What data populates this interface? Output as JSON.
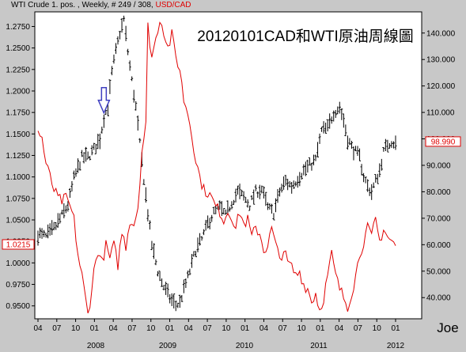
{
  "header": {
    "primary_text": "WTI Crude 1. pos. , Weekly, # 249 / 308,",
    "secondary_text": "USD/CAD"
  },
  "title": "20120101CAD和WTI原油周線圖",
  "signature": "Joe",
  "colors": {
    "background": "#ffffff",
    "frame": "#c8c8c8",
    "wti": "#000000",
    "usdcad": "#e00000",
    "arrow": "#4040c0"
  },
  "chart_data": {
    "type": "line",
    "x_tick_labels": [
      "04",
      "07",
      "10",
      "01",
      "04",
      "07",
      "10",
      "01",
      "04",
      "07",
      "10",
      "01",
      "04",
      "07",
      "10",
      "01",
      "04",
      "07",
      "10",
      "01"
    ],
    "year_labels": [
      "2008",
      "2009",
      "2010",
      "2011",
      "2012"
    ],
    "left_axis": {
      "series": "USD/CAD",
      "ticks": [
        "1.2750",
        "1.2500",
        "1.2250",
        "1.2000",
        "1.1750",
        "1.1500",
        "1.1250",
        "1.1000",
        "1.0750",
        "1.0500",
        "1.0250",
        "1.0000",
        "0.9750",
        "0.9500"
      ],
      "range": [
        0.935,
        1.292
      ],
      "current_value": "1.0215"
    },
    "right_axis": {
      "series": "WTI Crude 1. pos.",
      "ticks": [
        "140.000",
        "130.000",
        "120.000",
        "110.000",
        "100.000",
        "90.000",
        "80.000",
        "70.000",
        "60.000",
        "50.000",
        "40.000"
      ],
      "range": [
        32,
        148
      ],
      "current_value": "98.990"
    },
    "series": [
      {
        "name": "WTI Crude 1. pos.",
        "axis": "right",
        "style": "weekly-bars",
        "key_points": [
          [
            0,
            64
          ],
          [
            4,
            63
          ],
          [
            8,
            66
          ],
          [
            12,
            71
          ],
          [
            15,
            75
          ],
          [
            18,
            85
          ],
          [
            22,
            93
          ],
          [
            25,
            93
          ],
          [
            28,
            96
          ],
          [
            31,
            100
          ],
          [
            33,
            108
          ],
          [
            35,
            112
          ],
          [
            37,
            125
          ],
          [
            39,
            133
          ],
          [
            41,
            140
          ],
          [
            43,
            145
          ],
          [
            45,
            133
          ],
          [
            47,
            122
          ],
          [
            49,
            112
          ],
          [
            51,
            98
          ],
          [
            53,
            85
          ],
          [
            55,
            72
          ],
          [
            57,
            60
          ],
          [
            60,
            50
          ],
          [
            63,
            44
          ],
          [
            66,
            40
          ],
          [
            69,
            37
          ],
          [
            71,
            38
          ],
          [
            73,
            43
          ],
          [
            76,
            50
          ],
          [
            79,
            58
          ],
          [
            82,
            62
          ],
          [
            85,
            68
          ],
          [
            88,
            72
          ],
          [
            91,
            74
          ],
          [
            94,
            71
          ],
          [
            97,
            76
          ],
          [
            100,
            80
          ],
          [
            103,
            78
          ],
          [
            106,
            75
          ],
          [
            109,
            80
          ],
          [
            112,
            81
          ],
          [
            115,
            74
          ],
          [
            118,
            72
          ],
          [
            121,
            80
          ],
          [
            124,
            84
          ],
          [
            127,
            82
          ],
          [
            130,
            85
          ],
          [
            133,
            88
          ],
          [
            136,
            90
          ],
          [
            139,
            92
          ],
          [
            142,
            103
          ],
          [
            145,
            104
          ],
          [
            148,
            110
          ],
          [
            151,
            112
          ],
          [
            153,
            107
          ],
          [
            155,
            100
          ],
          [
            157,
            97
          ],
          [
            159,
            95
          ],
          [
            161,
            93
          ],
          [
            163,
            86
          ],
          [
            165,
            82
          ],
          [
            167,
            80
          ],
          [
            169,
            84
          ],
          [
            171,
            88
          ],
          [
            173,
            95
          ],
          [
            175,
            98
          ],
          [
            177,
            99
          ],
          [
            179,
            98
          ]
        ]
      },
      {
        "name": "USD/CAD",
        "axis": "left",
        "style": "line",
        "key_points": [
          [
            0,
            1.153
          ],
          [
            2,
            1.145
          ],
          [
            4,
            1.115
          ],
          [
            6,
            1.1
          ],
          [
            8,
            1.085
          ],
          [
            10,
            1.075
          ],
          [
            12,
            1.072
          ],
          [
            14,
            1.075
          ],
          [
            16,
            1.066
          ],
          [
            18,
            1.05
          ],
          [
            20,
            1.01
          ],
          [
            22,
            0.985
          ],
          [
            24,
            0.955
          ],
          [
            25,
            0.94
          ],
          [
            26,
            0.955
          ],
          [
            28,
            0.99
          ],
          [
            30,
            1.015
          ],
          [
            32,
            1.0
          ],
          [
            34,
            1.02
          ],
          [
            36,
            1.005
          ],
          [
            38,
            1.02
          ],
          [
            40,
            0.998
          ],
          [
            42,
            1.035
          ],
          [
            44,
            1.02
          ],
          [
            46,
            1.05
          ],
          [
            48,
            1.045
          ],
          [
            50,
            1.065
          ],
          [
            52,
            1.13
          ],
          [
            54,
            1.16
          ],
          [
            55,
            1.275
          ],
          [
            57,
            1.24
          ],
          [
            59,
            1.26
          ],
          [
            61,
            1.285
          ],
          [
            63,
            1.27
          ],
          [
            65,
            1.25
          ],
          [
            67,
            1.265
          ],
          [
            69,
            1.24
          ],
          [
            71,
            1.225
          ],
          [
            73,
            1.19
          ],
          [
            75,
            1.175
          ],
          [
            77,
            1.15
          ],
          [
            79,
            1.12
          ],
          [
            81,
            1.1
          ],
          [
            83,
            1.085
          ],
          [
            85,
            1.082
          ],
          [
            87,
            1.075
          ],
          [
            89,
            1.065
          ],
          [
            91,
            1.06
          ],
          [
            93,
            1.05
          ],
          [
            95,
            1.06
          ],
          [
            97,
            1.055
          ],
          [
            99,
            1.04
          ],
          [
            101,
            1.06
          ],
          [
            103,
            1.045
          ],
          [
            105,
            1.05
          ],
          [
            107,
            1.03
          ],
          [
            109,
            1.04
          ],
          [
            111,
            1.035
          ],
          [
            113,
            1.015
          ],
          [
            115,
            1.02
          ],
          [
            117,
            1.04
          ],
          [
            119,
            1.02
          ],
          [
            121,
            1.005
          ],
          [
            123,
            1.015
          ],
          [
            125,
            1.0
          ],
          [
            127,
            0.995
          ],
          [
            129,
            0.985
          ],
          [
            131,
            0.99
          ],
          [
            133,
            0.975
          ],
          [
            135,
            0.97
          ],
          [
            137,
            0.955
          ],
          [
            139,
            0.965
          ],
          [
            141,
            0.945
          ],
          [
            143,
            0.96
          ],
          [
            145,
            0.985
          ],
          [
            147,
            1.01
          ],
          [
            149,
            0.985
          ],
          [
            151,
            0.97
          ],
          [
            153,
            0.96
          ],
          [
            155,
            0.95
          ],
          [
            157,
            0.965
          ],
          [
            159,
            0.985
          ],
          [
            161,
            1.01
          ],
          [
            163,
            1.025
          ],
          [
            165,
            1.04
          ],
          [
            167,
            1.03
          ],
          [
            169,
            1.05
          ],
          [
            171,
            1.025
          ],
          [
            173,
            1.04
          ],
          [
            175,
            1.03
          ],
          [
            177,
            1.025
          ],
          [
            179,
            1.02
          ]
        ]
      }
    ],
    "annotations": [
      {
        "type": "arrow-down",
        "x_index": 33,
        "target_series": "WTI Crude 1. pos.",
        "target_value": 108
      }
    ],
    "grid": false,
    "legend": "none"
  }
}
